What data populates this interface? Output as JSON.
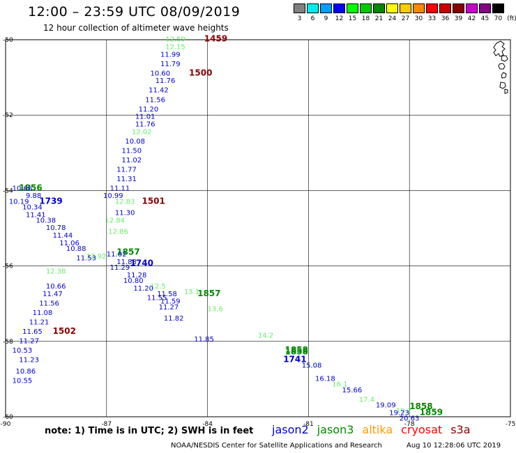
{
  "header": {
    "title": "12:00 – 23:59 UTC 08/09/2019",
    "subtitle": "12 hour collection of altimeter wave heights"
  },
  "legend": {
    "unit": "(ft)",
    "bins": [
      {
        "label": "3",
        "color": "#808080"
      },
      {
        "label": "6",
        "color": "#00eeee"
      },
      {
        "label": "9",
        "color": "#00a0ff"
      },
      {
        "label": "12",
        "color": "#0000ff"
      },
      {
        "label": "15",
        "color": "#00ff00"
      },
      {
        "label": "18",
        "color": "#00cc00"
      },
      {
        "label": "21",
        "color": "#008800"
      },
      {
        "label": "24",
        "color": "#ffff00"
      },
      {
        "label": "27",
        "color": "#ffcc00"
      },
      {
        "label": "30",
        "color": "#ff8800"
      },
      {
        "label": "33",
        "color": "#ff0000"
      },
      {
        "label": "36",
        "color": "#cc0000"
      },
      {
        "label": "39",
        "color": "#880000"
      },
      {
        "label": "42",
        "color": "#cc00cc"
      },
      {
        "label": "45",
        "color": "#880088"
      },
      {
        "label": "70",
        "color": "#000000"
      }
    ]
  },
  "axes": {
    "lon_ticks": [
      "-90",
      "-87",
      "-84",
      "-81",
      "-78",
      "-75"
    ],
    "lat_ticks": [
      "-50",
      "-52",
      "-54",
      "-56",
      "-58",
      "-60"
    ]
  },
  "tracks": [
    {
      "satellite": "s3a",
      "color": "#880000",
      "points": [
        {
          "lon": -84.1,
          "lat": -50.05,
          "value": "1459",
          "time_label": true
        },
        {
          "lon": -84.55,
          "lat": -50.95,
          "value": "1500",
          "time_label": true
        },
        {
          "lon": -85.95,
          "lat": -54.35,
          "value": "1501",
          "time_label": true
        },
        {
          "lon": -88.6,
          "lat": -57.8,
          "value": "1502",
          "time_label": true
        }
      ]
    },
    {
      "satellite": "jason3",
      "color": "#66ee66",
      "points": [
        {
          "lon": -85.25,
          "lat": -50.05,
          "value": "12.59"
        },
        {
          "lon": -85.25,
          "lat": -50.25,
          "value": "12.15"
        },
        {
          "lon": -86.25,
          "lat": -52.5,
          "value": "12.02"
        },
        {
          "lon": -86.75,
          "lat": -54.35,
          "value": "12.83"
        },
        {
          "lon": -87.05,
          "lat": -54.85,
          "value": "12.84"
        },
        {
          "lon": -86.95,
          "lat": -55.15,
          "value": "12.86"
        },
        {
          "lon": -87.6,
          "lat": -55.8,
          "value": "12.92"
        },
        {
          "lon": -88.8,
          "lat": -56.2,
          "value": "12.38"
        },
        {
          "lon": -85.7,
          "lat": -56.6,
          "value": "12.5"
        },
        {
          "lon": -84.7,
          "lat": -56.75,
          "value": "13.1"
        },
        {
          "lon": -84.0,
          "lat": -57.2,
          "value": "13.6"
        },
        {
          "lon": -82.5,
          "lat": -57.9,
          "value": "14.2"
        },
        {
          "lon": -81.2,
          "lat": -58.7,
          "value": "15.0"
        },
        {
          "lon": -80.3,
          "lat": -59.2,
          "value": "16.1"
        },
        {
          "lon": -79.5,
          "lat": -59.6,
          "value": "17.4"
        },
        {
          "lon": -78.4,
          "lat": -59.9,
          "value": "19.2"
        }
      ]
    },
    {
      "satellite": "jason3",
      "color": "#008800",
      "points": [
        {
          "lon": -89.6,
          "lat": -54.0,
          "value": "1856",
          "time_label": true
        },
        {
          "lon": -86.7,
          "lat": -55.7,
          "value": "1857",
          "time_label": true
        },
        {
          "lon": -84.3,
          "lat": -56.8,
          "value": "1857",
          "time_label": true
        },
        {
          "lon": -81.7,
          "lat": -58.3,
          "value": "1858",
          "time_label": true
        },
        {
          "lon": -81.7,
          "lat": -58.35,
          "value": "1858",
          "time_label": true
        },
        {
          "lon": -78.0,
          "lat": -59.8,
          "value": "1858",
          "time_label": true
        },
        {
          "lon": -77.7,
          "lat": -59.95,
          "value": "1859",
          "time_label": true
        }
      ]
    },
    {
      "satellite": "jason2",
      "color": "#0000cc",
      "points": [
        {
          "lon": -85.4,
          "lat": -50.45,
          "value": "11.99"
        },
        {
          "lon": -85.4,
          "lat": -50.7,
          "value": "11.79"
        },
        {
          "lon": -85.7,
          "lat": -50.95,
          "value": "10.60"
        },
        {
          "lon": -85.55,
          "lat": -51.15,
          "value": "11.76"
        },
        {
          "lon": -85.75,
          "lat": -51.4,
          "value": "11.42"
        },
        {
          "lon": -85.85,
          "lat": -51.65,
          "value": "11.56"
        },
        {
          "lon": -86.05,
          "lat": -51.9,
          "value": "11.20"
        },
        {
          "lon": -86.15,
          "lat": -52.1,
          "value": "11.01"
        },
        {
          "lon": -86.15,
          "lat": -52.3,
          "value": "11.76"
        },
        {
          "lon": -86.45,
          "lat": -52.75,
          "value": "10.08"
        },
        {
          "lon": -86.55,
          "lat": -53.0,
          "value": "11.50"
        },
        {
          "lon": -86.55,
          "lat": -53.25,
          "value": "11.02"
        },
        {
          "lon": -86.7,
          "lat": -53.5,
          "value": "11.77"
        },
        {
          "lon": -86.7,
          "lat": -53.75,
          "value": "11.31"
        },
        {
          "lon": -86.9,
          "lat": -54.0,
          "value": "11.11"
        },
        {
          "lon": -87.1,
          "lat": -54.2,
          "value": "10.99"
        },
        {
          "lon": -86.75,
          "lat": -54.65,
          "value": "11.30"
        },
        {
          "lon": -89.8,
          "lat": -54.0,
          "value": "10.66"
        },
        {
          "lon": -89.4,
          "lat": -54.2,
          "value": "9.88"
        },
        {
          "lon": -89.9,
          "lat": -54.35,
          "value": "10.19"
        },
        {
          "lon": -89.5,
          "lat": -54.5,
          "value": "10.34"
        },
        {
          "lon": -89.4,
          "lat": -54.7,
          "value": "11.41"
        },
        {
          "lon": -89.1,
          "lat": -54.85,
          "value": "10.38"
        },
        {
          "lon": -88.8,
          "lat": -55.05,
          "value": "10.78"
        },
        {
          "lon": -88.6,
          "lat": -55.25,
          "value": "11.44"
        },
        {
          "lon": -88.4,
          "lat": -55.45,
          "value": "11.06"
        },
        {
          "lon": -88.2,
          "lat": -55.6,
          "value": "10.88"
        },
        {
          "lon": -87.9,
          "lat": -55.85,
          "value": "11.53"
        },
        {
          "lon": -87.0,
          "lat": -55.75,
          "value": "11.02"
        },
        {
          "lon": -86.7,
          "lat": -55.95,
          "value": "11.88"
        },
        {
          "lon": -86.9,
          "lat": -56.1,
          "value": "11.29"
        },
        {
          "lon": -86.4,
          "lat": -56.3,
          "value": "11.28"
        },
        {
          "lon": -86.5,
          "lat": -56.45,
          "value": "10.80"
        },
        {
          "lon": -86.2,
          "lat": -56.65,
          "value": "11.20"
        },
        {
          "lon": -85.5,
          "lat": -56.8,
          "value": "11.58"
        },
        {
          "lon": -85.8,
          "lat": -56.9,
          "value": "11.55"
        },
        {
          "lon": -85.4,
          "lat": -57.0,
          "value": "11.59"
        },
        {
          "lon": -85.45,
          "lat": -57.15,
          "value": "11.27"
        },
        {
          "lon": -85.3,
          "lat": -57.45,
          "value": "11.82"
        },
        {
          "lon": -84.4,
          "lat": -58.0,
          "value": "11.85"
        },
        {
          "lon": -88.8,
          "lat": -56.6,
          "value": "10.66"
        },
        {
          "lon": -88.9,
          "lat": -56.8,
          "value": "11.47"
        },
        {
          "lon": -89.0,
          "lat": -57.05,
          "value": "11.56"
        },
        {
          "lon": -89.2,
          "lat": -57.3,
          "value": "11.08"
        },
        {
          "lon": -89.3,
          "lat": -57.55,
          "value": "11.21"
        },
        {
          "lon": -89.5,
          "lat": -57.8,
          "value": "11.65"
        },
        {
          "lon": -89.6,
          "lat": -58.05,
          "value": "11.27"
        },
        {
          "lon": -89.8,
          "lat": -58.3,
          "value": "10.53"
        },
        {
          "lon": -89.6,
          "lat": -58.55,
          "value": "11.23"
        },
        {
          "lon": -89.7,
          "lat": -58.85,
          "value": "10.86"
        },
        {
          "lon": -89.8,
          "lat": -59.1,
          "value": "10.55"
        },
        {
          "lon": -81.2,
          "lat": -58.7,
          "value": "15.08"
        },
        {
          "lon": -80.8,
          "lat": -59.05,
          "value": "16.18"
        },
        {
          "lon": -80.0,
          "lat": -59.35,
          "value": "15.66"
        },
        {
          "lon": -79.0,
          "lat": -59.75,
          "value": "19.09"
        },
        {
          "lon": -78.6,
          "lat": -59.95,
          "value": "19.23"
        },
        {
          "lon": -78.3,
          "lat": -60.1,
          "value": "20.63"
        }
      ]
    },
    {
      "satellite": "jason2",
      "color": "#0000cc",
      "points": [
        {
          "lon": -89.0,
          "lat": -54.35,
          "value": "1739",
          "time_label": true
        },
        {
          "lon": -86.3,
          "lat": -56.0,
          "value": "1740",
          "time_label": true
        },
        {
          "lon": -81.75,
          "lat": -58.55,
          "value": "1741",
          "time_label": true
        }
      ]
    }
  ],
  "footer": {
    "note": "note:  1) Time is in UTC;  2) SWH is in feet",
    "satellites": [
      {
        "name": "jason2",
        "color": "#0000cc"
      },
      {
        "name": "jason3",
        "color": "#008800"
      },
      {
        "name": "altika",
        "color": "#ff9900"
      },
      {
        "name": "cryosat",
        "color": "#ff0000"
      },
      {
        "name": "s3a",
        "color": "#880000"
      }
    ],
    "credit": "NOAA/NESDIS Center for Satellite Applications and Research",
    "timestamp": "Aug 10 12:28:06 UTC 2019"
  }
}
